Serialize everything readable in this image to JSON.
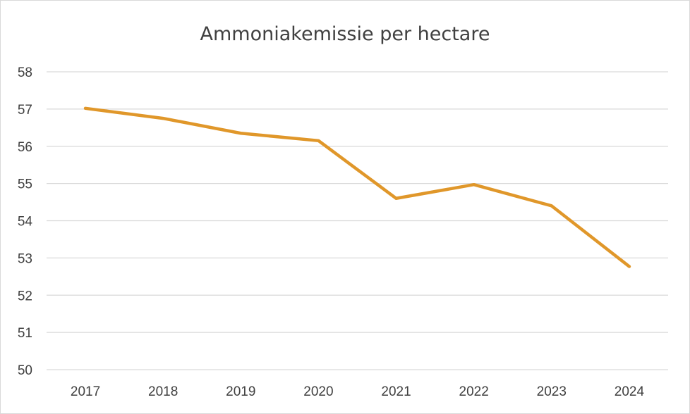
{
  "chart_data": {
    "type": "line",
    "title": "Ammoniakemissie per hectare",
    "xlabel": "",
    "ylabel": "",
    "categories": [
      "2017",
      "2018",
      "2019",
      "2020",
      "2021",
      "2022",
      "2023",
      "2024"
    ],
    "series": [
      {
        "values": [
          57.02,
          56.75,
          56.35,
          56.15,
          54.6,
          54.97,
          54.4,
          52.77
        ]
      }
    ],
    "ylim": [
      50,
      58
    ],
    "yticks": [
      "50",
      "51",
      "52",
      "53",
      "54",
      "55",
      "56",
      "57",
      "58"
    ],
    "grid": true,
    "legend": "none",
    "colors": {
      "line": "#E0972A",
      "grid": "#d9d9d9",
      "text": "#404040"
    }
  }
}
